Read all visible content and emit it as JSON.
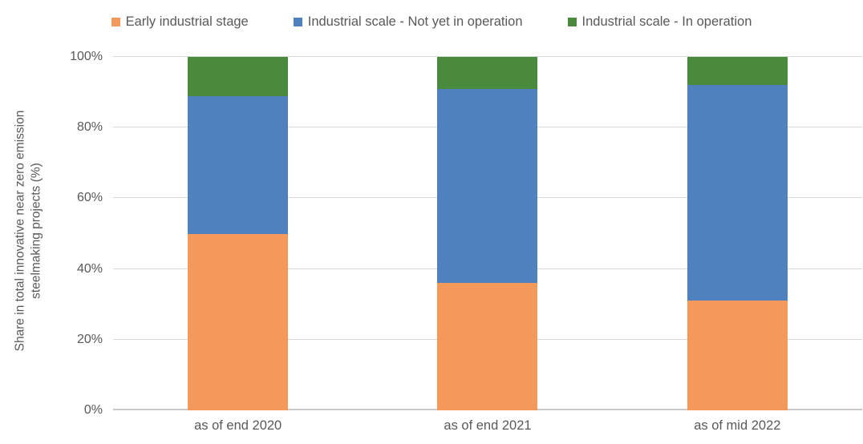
{
  "chart_data": {
    "type": "bar",
    "stacked": true,
    "percent_stacked": true,
    "title": "",
    "categories": [
      "as of end 2020",
      "as of end 2021",
      "as of mid 2022"
    ],
    "series": [
      {
        "name": "Early industrial stage",
        "color": "#F4995B",
        "values": [
          50,
          36,
          31
        ]
      },
      {
        "name": "Industrial scale - Not yet in operation",
        "color": "#4E81BD",
        "values": [
          39,
          55,
          61
        ]
      },
      {
        "name": "Industrial scale - In operation",
        "color": "#4A8A3D",
        "values": [
          11,
          9,
          8
        ]
      }
    ],
    "xlabel": "",
    "ylabel": "Share in total innovative near zero emission steelmaking projects (%)",
    "ylabel_lines": [
      "Share in total innovative near zero emission",
      "steelmaking projects (%)"
    ],
    "yticks": [
      0,
      20,
      40,
      60,
      80,
      100
    ],
    "ytick_suffix": "%",
    "ylim": [
      0,
      100
    ],
    "grid": true,
    "legend_position": "top",
    "colors": {
      "text": "#595959",
      "gridline": "#D9D9D9",
      "axis_line": "#C9C9C9",
      "background": "#FFFFFF"
    }
  }
}
